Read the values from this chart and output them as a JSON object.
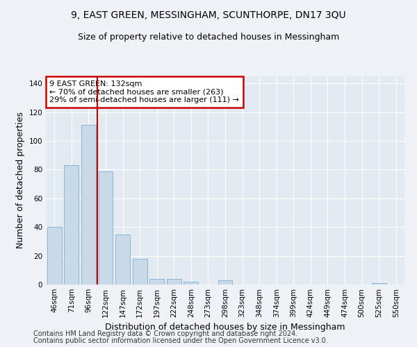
{
  "title": "9, EAST GREEN, MESSINGHAM, SCUNTHORPE, DN17 3QU",
  "subtitle": "Size of property relative to detached houses in Messingham",
  "xlabel": "Distribution of detached houses by size in Messingham",
  "ylabel": "Number of detached properties",
  "categories": [
    "46sqm",
    "71sqm",
    "96sqm",
    "122sqm",
    "147sqm",
    "172sqm",
    "197sqm",
    "222sqm",
    "248sqm",
    "273sqm",
    "298sqm",
    "323sqm",
    "348sqm",
    "374sqm",
    "399sqm",
    "424sqm",
    "449sqm",
    "474sqm",
    "500sqm",
    "525sqm",
    "550sqm"
  ],
  "values": [
    40,
    83,
    111,
    79,
    35,
    18,
    4,
    4,
    2,
    0,
    3,
    0,
    0,
    0,
    0,
    0,
    0,
    0,
    0,
    1,
    0
  ],
  "bar_color": "#c9d9e8",
  "bar_edge_color": "#7bafd4",
  "property_line_index": 3,
  "annotation_text": "9 EAST GREEN: 132sqm\n← 70% of detached houses are smaller (263)\n29% of semi-detached houses are larger (111) →",
  "annotation_box_color": "#ffffff",
  "annotation_box_edge_color": "#cc0000",
  "vline_color": "#cc0000",
  "ylim": [
    0,
    145
  ],
  "yticks": [
    0,
    20,
    40,
    60,
    80,
    100,
    120,
    140
  ],
  "footer_line1": "Contains HM Land Registry data © Crown copyright and database right 2024.",
  "footer_line2": "Contains public sector information licensed under the Open Government Licence v3.0.",
  "background_color": "#eef2f7",
  "plot_background_color": "#e4eaf2",
  "grid_color": "#ffffff",
  "title_fontsize": 10,
  "subtitle_fontsize": 9,
  "axis_label_fontsize": 9,
  "tick_fontsize": 7.5,
  "footer_fontsize": 7,
  "annotation_fontsize": 8
}
